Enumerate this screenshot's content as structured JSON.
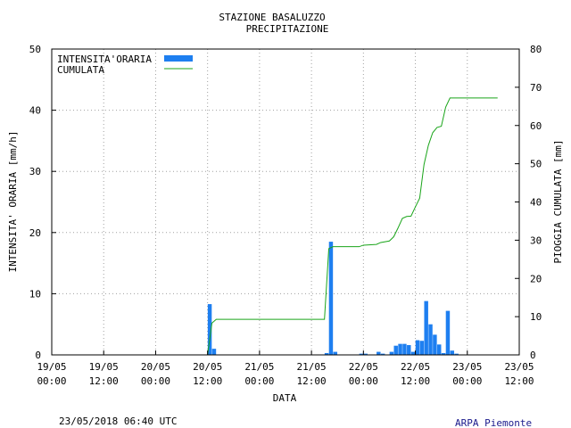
{
  "header": {
    "title_line1": "STAZIONE BASALUZZO",
    "title_line2": "PRECIPITAZIONE"
  },
  "footer": {
    "timestamp": "23/05/2018 06:40 UTC",
    "credit": "ARPA Piemonte"
  },
  "colors": {
    "bar": "#1e7ff0",
    "line": "#1aa51a",
    "grid": "#a0a0a0",
    "axis": "#000000",
    "credit": "#1a1a8c"
  },
  "chart_data": {
    "type": "bar",
    "title": "STAZIONE BASALUZZO PRECIPITAZIONE",
    "xlabel": "DATA",
    "ylabel_left": "INTENSITA' ORARIA [mm/h]",
    "ylabel_right": "PIOGGIA CUMULATA [mm]",
    "x_unit": "hours from 19/05 00:00",
    "xlim": [
      0,
      96
    ],
    "ylim_left": [
      0,
      50
    ],
    "ylim_right": [
      0,
      80
    ],
    "grid": true,
    "legend_position": "top-left",
    "x_ticks": [
      {
        "at": 0,
        "line1": "19/05",
        "line2": "00:00"
      },
      {
        "at": 12,
        "line1": "19/05",
        "line2": "12:00"
      },
      {
        "at": 24,
        "line1": "20/05",
        "line2": "00:00"
      },
      {
        "at": 36,
        "line1": "20/05",
        "line2": "12:00"
      },
      {
        "at": 48,
        "line1": "21/05",
        "line2": "00:00"
      },
      {
        "at": 60,
        "line1": "21/05",
        "line2": "12:00"
      },
      {
        "at": 72,
        "line1": "22/05",
        "line2": "00:00"
      },
      {
        "at": 84,
        "line1": "22/05",
        "line2": "12:00"
      },
      {
        "at": 96,
        "line1": "23/05",
        "line2": "00:00"
      },
      {
        "at": 108,
        "line1": "23/05",
        "line2": "12:00"
      }
    ],
    "y_ticks_left": [
      0,
      10,
      20,
      30,
      40,
      50
    ],
    "y_ticks_right": [
      0,
      10,
      20,
      30,
      40,
      50,
      60,
      70,
      80
    ],
    "series": [
      {
        "name": "INTENSITA'ORARIA",
        "kind": "bar",
        "axis": "left",
        "x": [
          36,
          37,
          63,
          64,
          65,
          71,
          72,
          75,
          76,
          78,
          79,
          80,
          81,
          82,
          83,
          84,
          85,
          86,
          87,
          88,
          89,
          90,
          91,
          92,
          93
        ],
        "values": [
          8.3,
          1.0,
          0.3,
          18.5,
          0.5,
          0.2,
          0.2,
          0.5,
          0.2,
          0.5,
          1.5,
          1.8,
          1.8,
          1.6,
          0.5,
          2.4,
          2.3,
          8.8,
          5.0,
          3.3,
          1.7,
          0.3,
          7.2,
          0.7,
          0.2
        ]
      },
      {
        "name": "CUMULATA",
        "kind": "line",
        "axis": "right",
        "x": [
          36,
          37,
          38,
          63,
          64,
          65,
          71,
          72,
          75,
          76,
          78,
          79,
          80,
          81,
          82,
          83,
          84,
          85,
          86,
          87,
          88,
          89,
          90,
          91,
          92,
          93,
          103
        ],
        "y": [
          0,
          8.3,
          9.3,
          9.3,
          27.8,
          28.3,
          28.3,
          28.7,
          28.9,
          29.4,
          29.8,
          30.9,
          33.2,
          35.7,
          36.2,
          36.3,
          38.7,
          41.0,
          49.8,
          54.8,
          58.1,
          59.5,
          59.8,
          64.8,
          67.2,
          67.2,
          67.2
        ]
      }
    ]
  }
}
